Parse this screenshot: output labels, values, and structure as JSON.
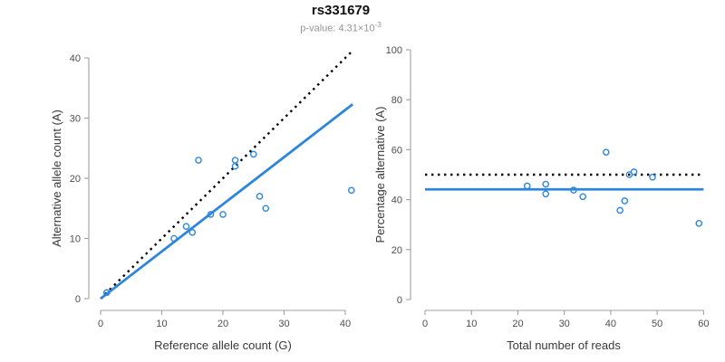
{
  "header": {
    "title": "rs331679",
    "pvalue_label": "p-value: 4.31×10",
    "pvalue_exponent": "-3"
  },
  "colors": {
    "accent_blue": "#2E86DC",
    "reference_line": "#000000"
  },
  "chart_data": [
    {
      "type": "scatter",
      "title": "",
      "xlabel": "Reference allele count (G)",
      "ylabel": "Alternative allele count (A)",
      "xlim": [
        0,
        40
      ],
      "ylim": [
        0,
        40
      ],
      "xticks": [
        0,
        10,
        20,
        30,
        40
      ],
      "yticks": [
        0,
        10,
        20,
        30,
        40
      ],
      "grid": false,
      "legend": "none",
      "points": [
        [
          1,
          1
        ],
        [
          12,
          10
        ],
        [
          14,
          12
        ],
        [
          15,
          11
        ],
        [
          16,
          23
        ],
        [
          18,
          14
        ],
        [
          20,
          14
        ],
        [
          22,
          22
        ],
        [
          22,
          23
        ],
        [
          25,
          24
        ],
        [
          26,
          17
        ],
        [
          27,
          15
        ],
        [
          41,
          18
        ]
      ],
      "lines": [
        {
          "name": "identity-line",
          "style": "dotted",
          "color": "#000000",
          "from": [
            0,
            0
          ],
          "to": [
            41,
            41
          ]
        },
        {
          "name": "fit-line",
          "style": "solid",
          "color": "#2E86DC",
          "from": [
            0,
            0
          ],
          "to": [
            41.2,
            32.3
          ]
        }
      ]
    },
    {
      "type": "scatter",
      "title": "",
      "xlabel": "Total number of reads",
      "ylabel": "Percentage alternative (A)",
      "xlim": [
        0,
        60
      ],
      "ylim": [
        0,
        100
      ],
      "xticks": [
        0,
        10,
        20,
        30,
        40,
        50,
        60
      ],
      "yticks": [
        0,
        20,
        40,
        60,
        80,
        100
      ],
      "grid": false,
      "legend": "none",
      "points": [
        [
          22,
          45.5
        ],
        [
          26,
          46.2
        ],
        [
          26,
          42.3
        ],
        [
          32,
          43.8
        ],
        [
          34,
          41.2
        ],
        [
          39,
          59.0
        ],
        [
          42,
          35.7
        ],
        [
          43,
          39.5
        ],
        [
          44,
          50.0
        ],
        [
          45,
          51.1
        ],
        [
          49,
          49.0
        ],
        [
          59,
          30.5
        ]
      ],
      "lines": [
        {
          "name": "expected-50-line",
          "style": "dotted",
          "color": "#000000",
          "y": 50
        },
        {
          "name": "observed-mean-line",
          "style": "solid",
          "color": "#2E86DC",
          "y": 44.1
        }
      ]
    }
  ]
}
